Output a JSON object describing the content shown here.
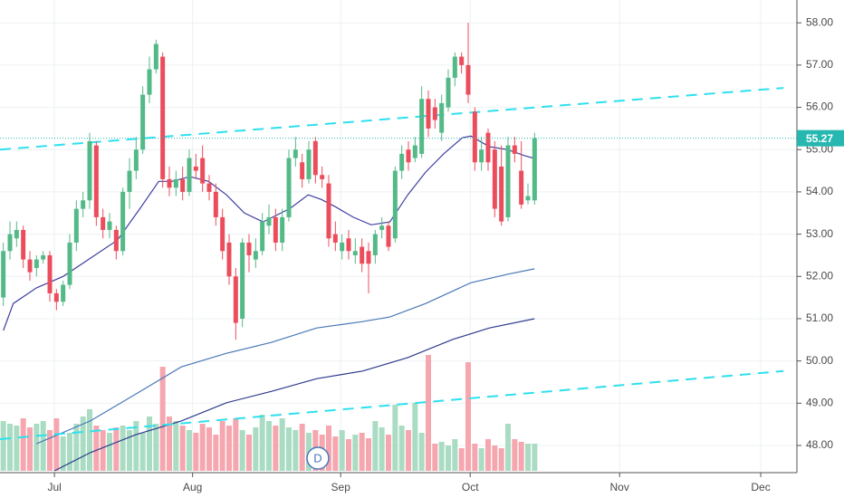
{
  "chart_data": {
    "type": "candlestick",
    "open": [
      51.5,
      52.6,
      52.9,
      53.1,
      52.4,
      52.2,
      52.4,
      52.5,
      51.6,
      51.4,
      51.8,
      52.8,
      53.6,
      53.8,
      55.1,
      53.4,
      53.1,
      53.1,
      52.6,
      54.0,
      54.5,
      55.0,
      56.3,
      56.9,
      57.2,
      54.3,
      54.1,
      54.3,
      54.0,
      54.6,
      54.8,
      54.2,
      54.0,
      53.4,
      52.8,
      52.0,
      51.0,
      52.8,
      52.4,
      52.6,
      53.2,
      53.4,
      52.8,
      53.4,
      54.8,
      54.7,
      54.3,
      55.2,
      54.4,
      54.2,
      53.0,
      52.6,
      52.9,
      52.5,
      52.7,
      52.6,
      52.5,
      53.1,
      53.2,
      52.9,
      54.5,
      55.0,
      54.8,
      54.9,
      56.2,
      56.0,
      55.4,
      56.0,
      56.7,
      57.2,
      57.0,
      55.9,
      54.7,
      55.4,
      55.0,
      54.6,
      53.4,
      55.1,
      54.5,
      53.8,
      53.8
    ],
    "high": [
      52.8,
      53.3,
      53.3,
      53.2,
      52.6,
      52.5,
      52.6,
      52.6,
      51.7,
      51.9,
      53.0,
      53.8,
      54.0,
      55.4,
      55.2,
      53.6,
      53.5,
      53.2,
      54.1,
      54.8,
      55.3,
      56.5,
      57.2,
      57.6,
      57.3,
      54.6,
      54.5,
      54.6,
      55.0,
      54.9,
      55.1,
      54.4,
      54.2,
      53.6,
      53.0,
      52.2,
      52.9,
      53.0,
      52.9,
      53.5,
      53.7,
      53.6,
      53.6,
      55.0,
      55.3,
      54.9,
      55.2,
      55.3,
      54.6,
      54.4,
      53.3,
      53.0,
      53.1,
      52.9,
      52.9,
      52.8,
      53.1,
      53.4,
      53.3,
      54.6,
      55.1,
      55.2,
      55.3,
      56.5,
      56.4,
      56.2,
      56.3,
      56.9,
      57.3,
      57.3,
      58.0,
      56.0,
      55.3,
      55.5,
      55.2,
      55.1,
      55.3,
      55.3,
      55.2,
      54.2,
      55.4
    ],
    "low": [
      51.3,
      52.4,
      52.7,
      52.2,
      51.9,
      52.0,
      52.3,
      51.4,
      51.2,
      51.3,
      51.7,
      52.6,
      53.4,
      53.6,
      53.2,
      52.9,
      52.9,
      52.4,
      52.5,
      53.6,
      54.3,
      54.9,
      56.1,
      56.8,
      54.1,
      53.9,
      53.9,
      53.8,
      53.9,
      54.3,
      54.0,
      53.8,
      53.2,
      52.4,
      51.8,
      50.5,
      50.8,
      52.1,
      52.2,
      52.5,
      53.0,
      52.6,
      52.6,
      53.3,
      54.6,
      54.1,
      54.2,
      54.2,
      54.1,
      52.7,
      52.6,
      52.4,
      52.4,
      52.3,
      52.1,
      51.6,
      52.3,
      52.9,
      52.6,
      52.8,
      54.3,
      54.5,
      54.7,
      54.8,
      55.3,
      55.5,
      55.2,
      55.9,
      56.5,
      56.8,
      56.1,
      54.5,
      54.5,
      54.5,
      53.4,
      53.2,
      53.3,
      54.7,
      53.6,
      53.7,
      53.7
    ],
    "close": [
      52.6,
      53.0,
      53.1,
      52.4,
      52.1,
      52.4,
      52.5,
      51.6,
      51.4,
      51.8,
      52.8,
      53.6,
      53.8,
      55.2,
      53.4,
      53.1,
      53.3,
      52.6,
      54.0,
      54.5,
      55.0,
      56.3,
      56.9,
      57.5,
      54.3,
      54.1,
      54.3,
      54.0,
      54.8,
      54.5,
      54.2,
      54.0,
      53.4,
      52.6,
      52.0,
      50.9,
      52.8,
      52.5,
      52.6,
      53.3,
      53.4,
      52.8,
      53.4,
      54.8,
      55.0,
      54.3,
      55.0,
      54.4,
      54.3,
      52.9,
      52.8,
      52.8,
      52.6,
      52.6,
      52.3,
      52.3,
      53.0,
      53.2,
      52.7,
      54.5,
      54.9,
      54.7,
      55.1,
      56.2,
      55.5,
      55.7,
      56.1,
      56.7,
      57.2,
      57.0,
      56.3,
      54.7,
      55.0,
      54.7,
      53.6,
      53.3,
      55.1,
      54.9,
      53.7,
      53.9,
      55.27
    ],
    "volume": [
      55,
      52,
      50,
      58,
      48,
      52,
      55,
      45,
      58,
      38,
      42,
      52,
      60,
      68,
      50,
      45,
      42,
      48,
      50,
      45,
      55,
      42,
      60,
      52,
      115,
      60,
      55,
      50,
      45,
      42,
      52,
      48,
      40,
      55,
      50,
      58,
      45,
      40,
      48,
      62,
      55,
      50,
      58,
      48,
      45,
      52,
      42,
      45,
      40,
      50,
      38,
      45,
      35,
      40,
      42,
      36,
      55,
      48,
      40,
      73,
      50,
      45,
      75,
      42,
      128,
      30,
      32,
      28,
      35,
      25,
      120,
      30,
      25,
      35,
      28,
      25,
      52,
      35,
      32,
      30,
      30
    ],
    "volume_lim": [
      0,
      130
    ],
    "up_color": "#53b987",
    "down_color": "#eb4d5c",
    "volume_up_color": "#a9dcc3",
    "volume_down_color": "#f5a6ae",
    "lines": [
      {
        "color": "#3f3fa0",
        "x": [
          0,
          1.5,
          5,
          9,
          13.1,
          17.2,
          20.6,
          23.4,
          25.4,
          28.1,
          30.9,
          33.6,
          36.3,
          39.1,
          43.2,
          45.9,
          47.9,
          50,
          52.7,
          55.4,
          58.2,
          60.9,
          63.6,
          66.3,
          69.1,
          70.4,
          73.2,
          75.9,
          78.6,
          80
        ],
        "values": [
          50.72,
          51.36,
          51.73,
          52.0,
          52.43,
          52.86,
          53.61,
          54.25,
          54.25,
          54.36,
          54.25,
          53.93,
          53.5,
          53.29,
          53.61,
          53.93,
          53.82,
          53.65,
          53.4,
          53.22,
          53.29,
          53.93,
          54.47,
          54.9,
          55.28,
          55.32,
          55.07,
          55.0,
          54.85,
          54.79
        ]
      },
      {
        "color": "#4a78b8",
        "x": [
          5,
          13.1,
          20,
          26.8,
          33.6,
          40.4,
          47.2,
          54.1,
          58.2,
          63.6,
          70.4,
          75.9,
          80
        ],
        "values": [
          48.04,
          48.58,
          49.22,
          49.86,
          50.18,
          50.44,
          50.78,
          50.93,
          51.04,
          51.36,
          51.85,
          52.05,
          52.18
        ]
      },
      {
        "color": "#2e3b8c",
        "x": [
          7.7,
          13.1,
          20,
          26.8,
          33.6,
          40.4,
          47.2,
          54.1,
          60.9,
          67.7,
          73.2,
          80
        ],
        "values": [
          47.4,
          47.83,
          48.26,
          48.58,
          49.01,
          49.28,
          49.58,
          49.76,
          50.08,
          50.51,
          50.78,
          51.0
        ]
      }
    ],
    "trendlines": [
      {
        "color": "#2ee0ee",
        "x": [
          -0.5,
          117.5
        ],
        "values": [
          55.0,
          56.46
        ]
      },
      {
        "color": "#2ee0ee",
        "x": [
          -0.5,
          117.5
        ],
        "values": [
          48.15,
          49.76
        ]
      }
    ],
    "last_price_color": "#26b8b0",
    "badge": "D",
    "xlim": [
      -0.5,
      119.5
    ],
    "xticks": [
      {
        "value": 7.7,
        "label": "Jul"
      },
      {
        "value": 28.5,
        "label": "Aug"
      },
      {
        "value": 50.8,
        "label": "Sep"
      },
      {
        "value": 70.3,
        "label": "Oct"
      },
      {
        "value": 92.8,
        "label": "Nov"
      },
      {
        "value": 114.05,
        "label": "Dec"
      }
    ],
    "ylim": [
      47.4,
      58.54
    ],
    "yticks": [
      {
        "value": 48,
        "label": "48.00"
      },
      {
        "value": 49,
        "label": "49.00"
      },
      {
        "value": 50,
        "label": "50.00"
      },
      {
        "value": 51,
        "label": "51.00"
      },
      {
        "value": 52,
        "label": "52.00"
      },
      {
        "value": 53,
        "label": "53.00"
      },
      {
        "value": 54,
        "label": "54.00"
      },
      {
        "value": 55,
        "label": "55.00"
      },
      {
        "value": 56,
        "label": "56.00"
      },
      {
        "value": 57,
        "label": "57.00"
      },
      {
        "value": 58,
        "label": "58.00"
      }
    ],
    "grid": true
  }
}
